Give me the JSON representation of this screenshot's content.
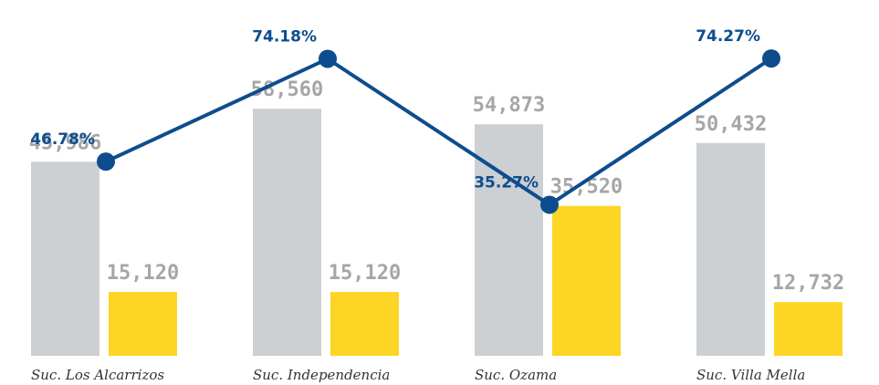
{
  "chart_data": {
    "type": "bar",
    "categories": [
      "Suc. Los Alcarrizos",
      "Suc. Independencia",
      "Suc. Ozama",
      "Suc. Villa Mella"
    ],
    "ylim": [
      0,
      80000
    ],
    "y2lim": [
      -5,
      85
    ],
    "grid": false,
    "series": [
      {
        "type": "bar",
        "color": "#ccd0d3",
        "values": [
          45986,
          58560,
          54873,
          50432
        ],
        "value_labels": [
          "45,986",
          "58,560",
          "54,873",
          "50,432"
        ]
      },
      {
        "type": "bar",
        "color": "#fdd525",
        "values": [
          15120,
          15120,
          35520,
          12732
        ],
        "value_labels": [
          "15,120",
          "15,120",
          "35,520",
          "12,732"
        ]
      },
      {
        "type": "line",
        "axis": "y2",
        "color": "#0d4d8e",
        "values": [
          46.78,
          74.18,
          35.27,
          74.27
        ],
        "value_labels": [
          "46.78%",
          "74.18%",
          "35.27%",
          "74.27%"
        ]
      }
    ]
  }
}
